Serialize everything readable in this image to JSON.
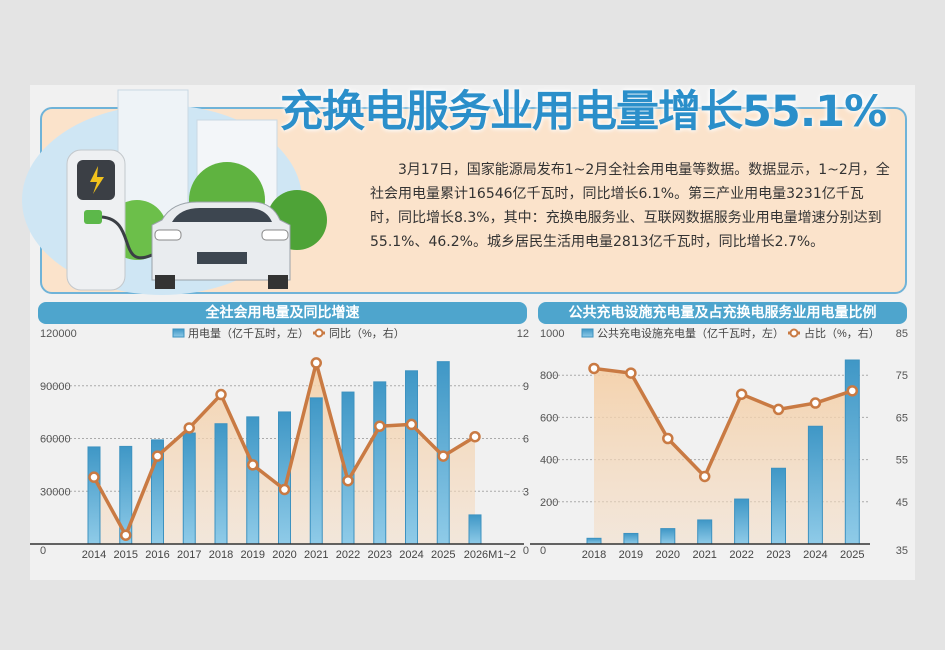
{
  "headline": "充换电服务业用电量增长55.1%",
  "body": "3月17日，国家能源局发布1~2月全社会用电量等数据。数据显示，1~2月，全社会用电量累计16546亿千瓦时，同比增长6.1%。第三产业用电量3231亿千瓦时，同比增长8.3%，其中：充换电服务业、互联网数据服务业用电量增速分别达到55.1%、46.2%。城乡居民生活用电量2813亿千瓦时，同比增长2.7%。",
  "colors": {
    "bar": "#4ea5cd",
    "line": "#c97a43",
    "fill": "#f4d2ae",
    "title": "#2b8fca"
  },
  "chart_data": [
    {
      "type": "bar+line",
      "title": "全社会用电量及同比增速",
      "categories": [
        "2014",
        "2015",
        "2016",
        "2017",
        "2018",
        "2019",
        "2020",
        "2021",
        "2022",
        "2023",
        "2024",
        "2025",
        "2026M1~2"
      ],
      "series": [
        {
          "name": "用电量（亿千瓦时，左）",
          "type": "bar",
          "axis": "left",
          "values": [
            55200,
            55500,
            59200,
            63100,
            68400,
            72300,
            75100,
            83100,
            86400,
            92200,
            98500,
            103700,
            16546
          ]
        },
        {
          "name": "同比（%，右）",
          "type": "line",
          "axis": "right",
          "values": [
            3.8,
            0.5,
            5.0,
            6.6,
            8.5,
            4.5,
            3.1,
            10.3,
            3.6,
            6.7,
            6.8,
            5.0,
            6.1
          ]
        }
      ],
      "ylim_left": [
        0,
        120000
      ],
      "yticks_left": [
        "0",
        "30000",
        "60000",
        "90000",
        "120000"
      ],
      "ylim_right": [
        0,
        12
      ],
      "yticks_right": [
        "0",
        "3",
        "6",
        "9",
        "12"
      ],
      "grid": true,
      "legend": "top"
    },
    {
      "type": "bar+line",
      "title": "公共充电设施充电量及占充换电服务业用电量比例",
      "categories": [
        "2018",
        "2019",
        "2020",
        "2021",
        "2022",
        "2023",
        "2024",
        "2025"
      ],
      "series": [
        {
          "name": "公共充电设施充电量（亿千瓦时，左）",
          "type": "bar",
          "axis": "left",
          "values": [
            27,
            50,
            73,
            114,
            213,
            359,
            558,
            872
          ]
        },
        {
          "name": "占比（%，右）",
          "type": "line",
          "axis": "right",
          "values": [
            76.6,
            75.5,
            60.0,
            51.0,
            70.5,
            66.9,
            68.4,
            71.3
          ]
        }
      ],
      "ylim_left": [
        0,
        1000
      ],
      "yticks_left": [
        "0",
        "200",
        "400",
        "600",
        "800",
        "1000"
      ],
      "ylim_right": [
        35,
        85
      ],
      "yticks_right": [
        "35",
        "45",
        "55",
        "65",
        "75",
        "85"
      ],
      "grid": true,
      "legend": "top"
    }
  ]
}
